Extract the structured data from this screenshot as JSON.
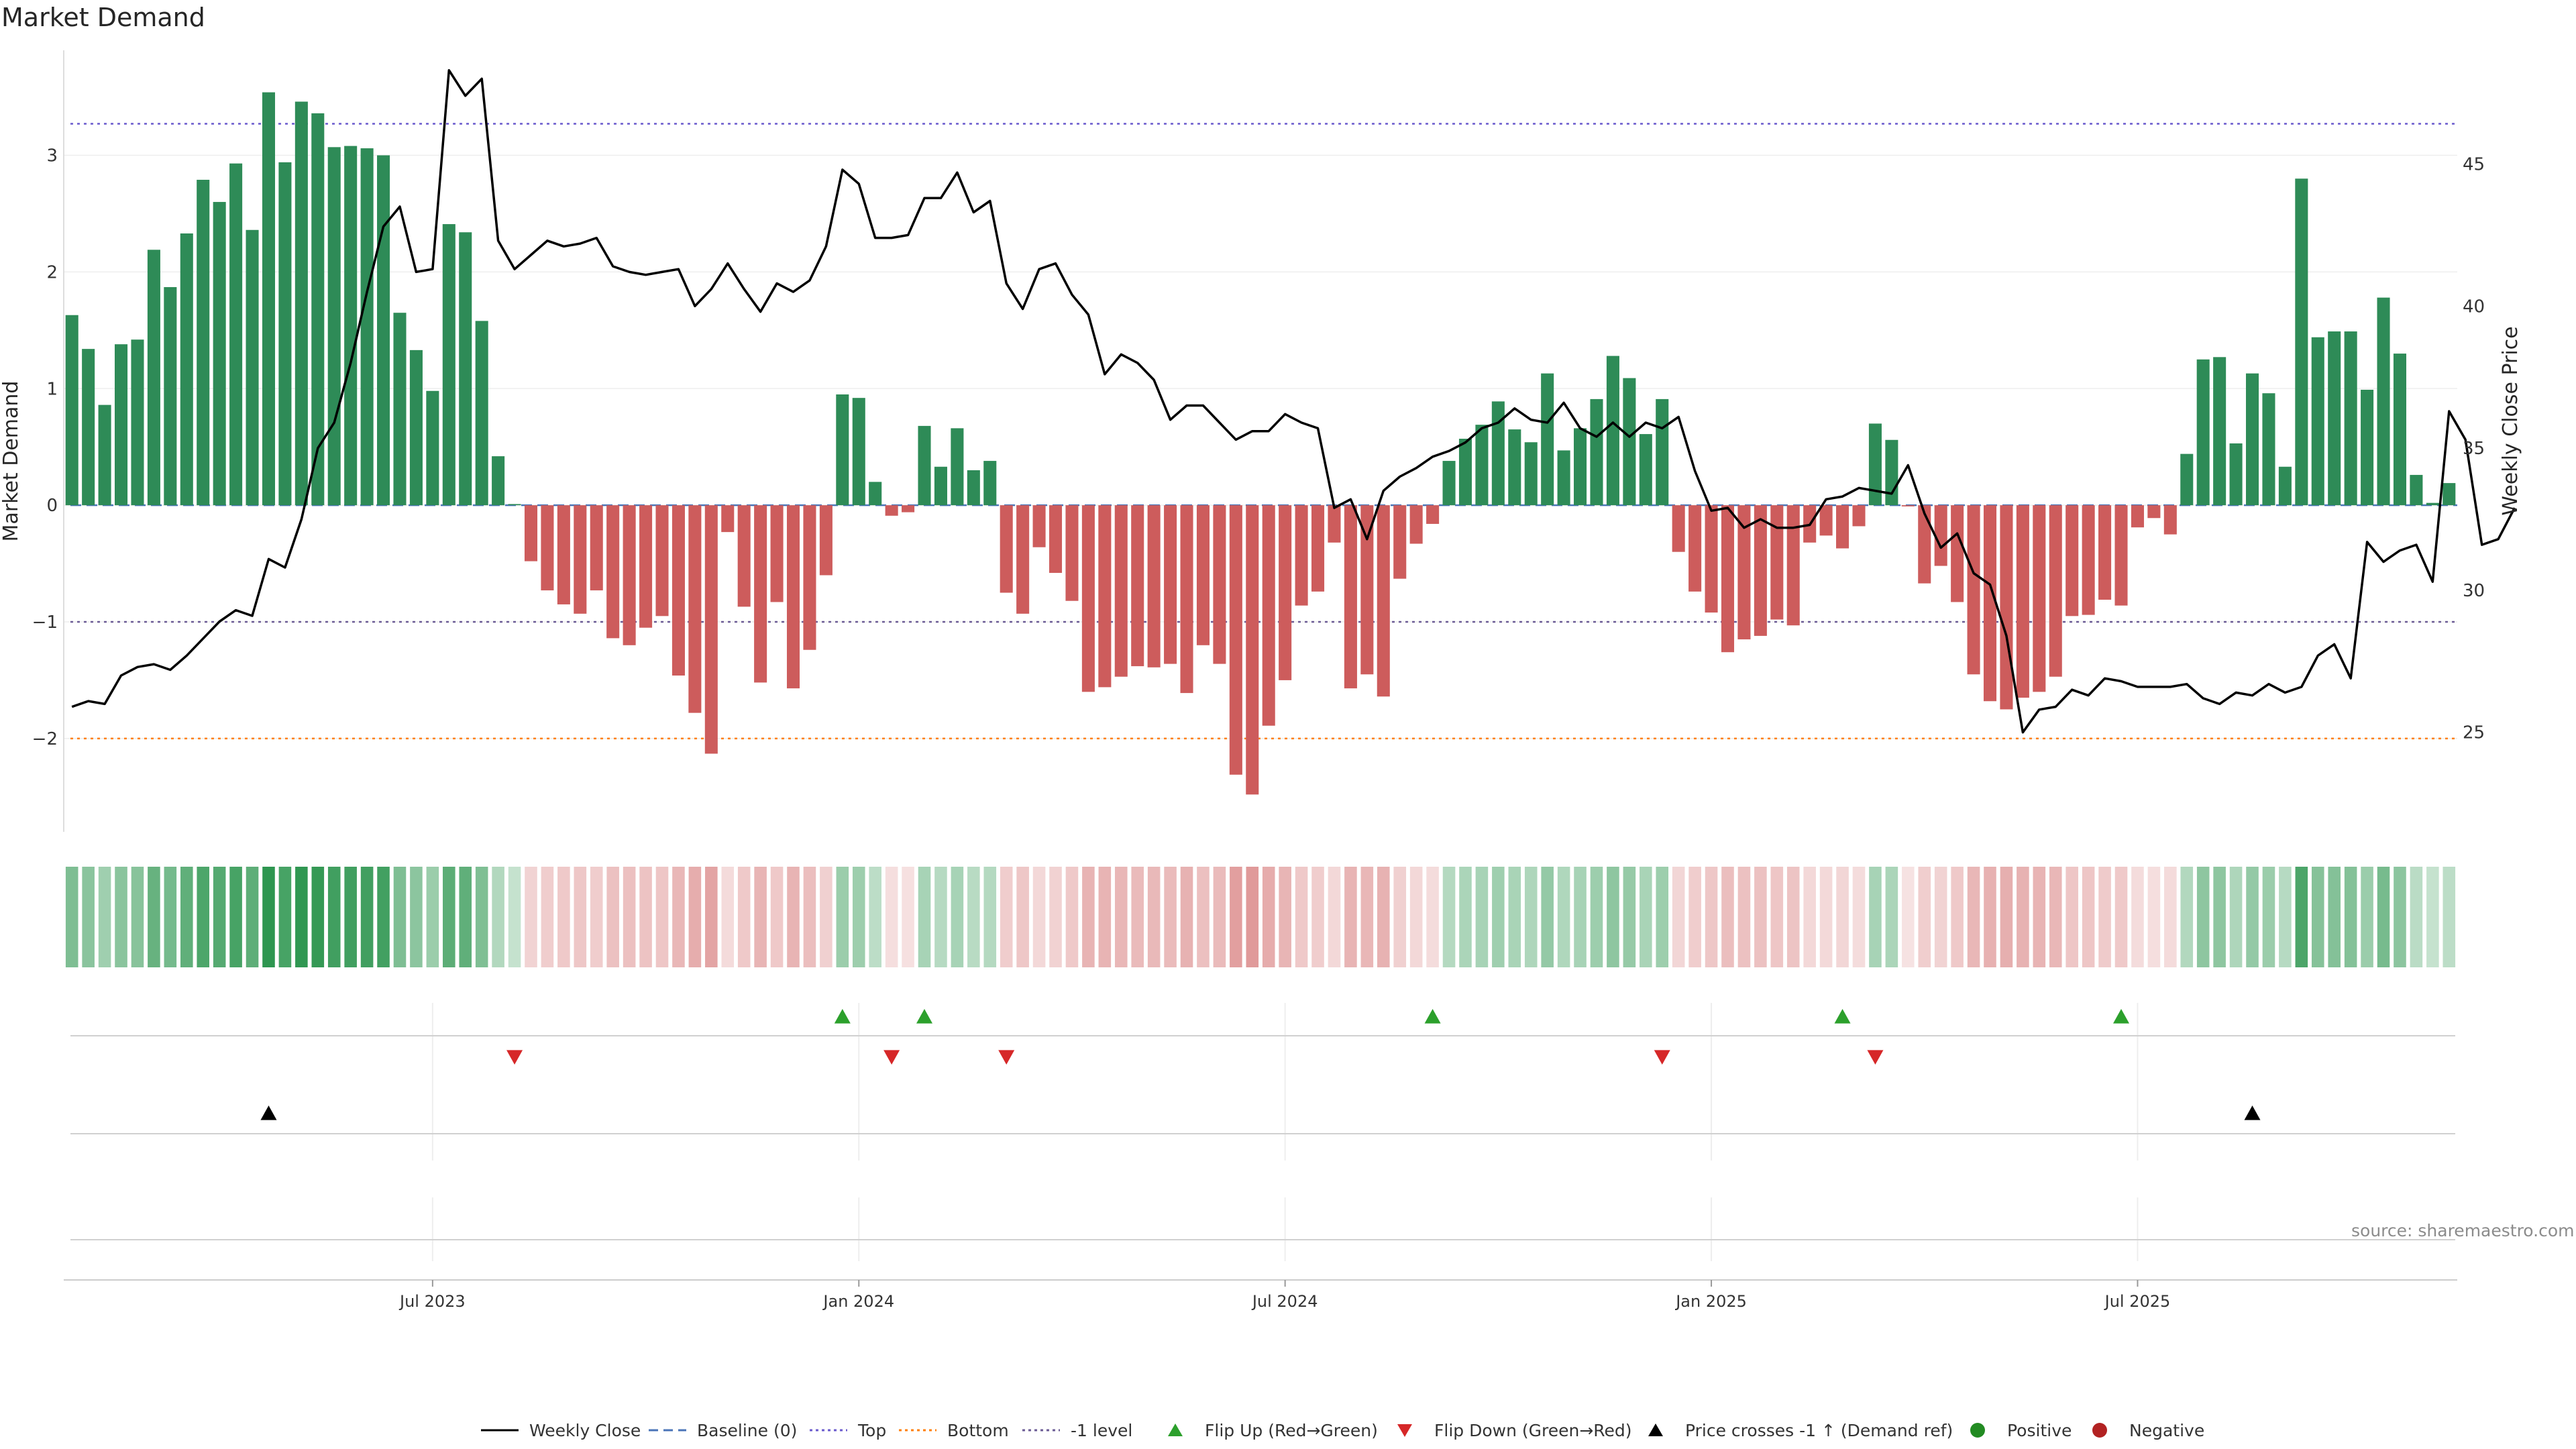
{
  "title": "Market Demand",
  "source": "source: sharemaestro.com",
  "colors": {
    "positive_bar": "#2e8b57",
    "negative_bar": "#cd5c5c",
    "price_line": "#000000",
    "baseline": "#4a74b8",
    "top_level": "#6a5acd",
    "bottom_level": "#ff7f0e",
    "minus1_level": "#6b5b95",
    "flip_up": "#2ca02c",
    "flip_down": "#d62728",
    "cross": "#000000",
    "positive_dot": "#228b22",
    "negative_dot": "#b22222"
  },
  "legend": [
    {
      "label": "Weekly Close",
      "icon": "solid-line"
    },
    {
      "label": "Baseline (0)",
      "icon": "dashed-line"
    },
    {
      "label": "Top",
      "icon": "dotted-line-purple"
    },
    {
      "label": "Bottom",
      "icon": "dotted-line-orange"
    },
    {
      "label": "-1 level",
      "icon": "dotted-line-gray"
    },
    {
      "label": "Flip Up (Red→Green)",
      "icon": "triangle-up-green"
    },
    {
      "label": "Flip Down (Green→Red)",
      "icon": "triangle-down-red"
    },
    {
      "label": "Price crosses -1 ↑ (Demand ref)",
      "icon": "triangle-up-black"
    },
    {
      "label": "Positive",
      "icon": "circle-green"
    },
    {
      "label": "Negative",
      "icon": "circle-red"
    }
  ],
  "chart_data": {
    "type": "bar",
    "frequency": "weekly",
    "x_ticks": [
      "Jul 2023",
      "Jan 2024",
      "Jul 2024",
      "Jan 2025",
      "Jul 2025"
    ],
    "x_tick_index": [
      22,
      48,
      74,
      100,
      126
    ],
    "left_axis": {
      "label": "Market Demand",
      "ylim": [
        -2.8,
        3.9
      ],
      "ticks": [
        3,
        2,
        1,
        0,
        -1,
        -2
      ]
    },
    "right_axis": {
      "label": "Weekly Close Price",
      "ylim": [
        21.5,
        49.0
      ],
      "ticks": [
        45,
        40,
        35,
        30,
        25
      ]
    },
    "reference_lines": {
      "top": 3.27,
      "baseline": 0,
      "minus1": -1,
      "bottom": -2
    },
    "series": [
      {
        "name": "Market Demand",
        "axis": "left",
        "type": "bar",
        "values": [
          1.63,
          1.34,
          0.86,
          1.38,
          1.42,
          2.19,
          1.87,
          2.33,
          2.79,
          2.6,
          2.93,
          2.36,
          3.54,
          2.94,
          3.46,
          3.36,
          3.07,
          3.08,
          3.06,
          3.0,
          1.65,
          1.33,
          0.98,
          2.41,
          2.34,
          1.58,
          0.42,
          0.01,
          -0.48,
          -0.73,
          -0.85,
          -0.93,
          -0.73,
          -1.14,
          -1.2,
          -1.05,
          -0.95,
          -1.46,
          -1.78,
          -2.13,
          -0.23,
          -0.87,
          -1.52,
          -0.83,
          -1.57,
          -1.24,
          -0.6,
          0.95,
          0.92,
          0.2,
          -0.09,
          -0.06,
          0.68,
          0.33,
          0.66,
          0.3,
          0.38,
          -0.75,
          -0.93,
          -0.36,
          -0.58,
          -0.82,
          -1.6,
          -1.56,
          -1.47,
          -1.38,
          -1.39,
          -1.36,
          -1.61,
          -1.2,
          -1.36,
          -2.31,
          -2.48,
          -1.89,
          -1.5,
          -0.86,
          -0.74,
          -0.32,
          -1.57,
          -1.45,
          -1.64,
          -0.63,
          -0.33,
          -0.16,
          0.38,
          0.57,
          0.69,
          0.89,
          0.65,
          0.54,
          1.13,
          0.47,
          0.66,
          0.91,
          1.28,
          1.09,
          0.61,
          0.91,
          -0.4,
          -0.74,
          -0.92,
          -1.26,
          -1.15,
          -1.12,
          -0.98,
          -1.03,
          -0.32,
          -0.26,
          -0.37,
          -0.18,
          0.7,
          0.56,
          -0.01,
          -0.67,
          -0.52,
          -0.83,
          -1.45,
          -1.68,
          -1.75,
          -1.65,
          -1.6,
          -1.47,
          -0.95,
          -0.94,
          -0.81,
          -0.86,
          -0.19,
          -0.11,
          -0.25,
          0.44,
          1.25,
          1.27,
          0.53,
          1.13,
          0.96,
          0.33,
          2.8,
          1.44,
          1.49,
          1.49,
          0.99,
          1.78,
          1.3,
          0.26,
          0.02,
          0.19
        ]
      },
      {
        "name": "Weekly Close",
        "axis": "right",
        "type": "line",
        "values": [
          25.9,
          26.1,
          26.0,
          27.0,
          27.3,
          27.4,
          27.2,
          27.7,
          28.3,
          28.9,
          29.3,
          29.1,
          31.1,
          30.8,
          32.5,
          35.0,
          35.9,
          38.0,
          40.5,
          42.8,
          43.5,
          41.2,
          41.3,
          48.3,
          47.4,
          48.0,
          42.3,
          41.3,
          41.8,
          42.3,
          42.1,
          42.2,
          42.4,
          41.4,
          41.2,
          41.1,
          41.2,
          41.3,
          40.0,
          40.6,
          41.5,
          40.6,
          39.8,
          40.8,
          40.5,
          40.9,
          42.1,
          44.8,
          44.3,
          42.4,
          42.4,
          42.5,
          43.8,
          43.8,
          44.7,
          43.3,
          43.7,
          40.8,
          39.9,
          41.3,
          41.5,
          40.4,
          39.7,
          37.6,
          38.3,
          38.0,
          37.4,
          36.0,
          36.5,
          36.5,
          35.9,
          35.3,
          35.6,
          35.6,
          36.2,
          35.9,
          35.7,
          32.9,
          33.2,
          31.8,
          33.5,
          34.0,
          34.3,
          34.7,
          34.9,
          35.2,
          35.7,
          35.9,
          36.4,
          36.0,
          35.9,
          36.6,
          35.7,
          35.4,
          35.9,
          35.4,
          35.9,
          35.7,
          36.1,
          34.2,
          32.8,
          32.9,
          32.2,
          32.5,
          32.2,
          32.2,
          32.3,
          33.2,
          33.3,
          33.6,
          33.5,
          33.4,
          34.4,
          32.7,
          31.5,
          32.0,
          30.6,
          30.2,
          28.4,
          25.0,
          25.8,
          25.9,
          26.5,
          26.3,
          26.9,
          26.8,
          26.6,
          26.6,
          26.6,
          26.7,
          26.2,
          26.0,
          26.4,
          26.3,
          26.7,
          26.4,
          26.6,
          27.7,
          28.1,
          26.9,
          31.7,
          31.0,
          31.4,
          31.6,
          30.3,
          36.3,
          35.3,
          31.6,
          31.8,
          32.9
        ]
      }
    ],
    "heat_strip": {
      "description": "color-coded demand intensity per week"
    },
    "flip_up_index": [
      47,
      52,
      83,
      108,
      125
    ],
    "flip_down_index": [
      27,
      50,
      57,
      97,
      110
    ],
    "price_cross_index": [
      12,
      133
    ]
  }
}
